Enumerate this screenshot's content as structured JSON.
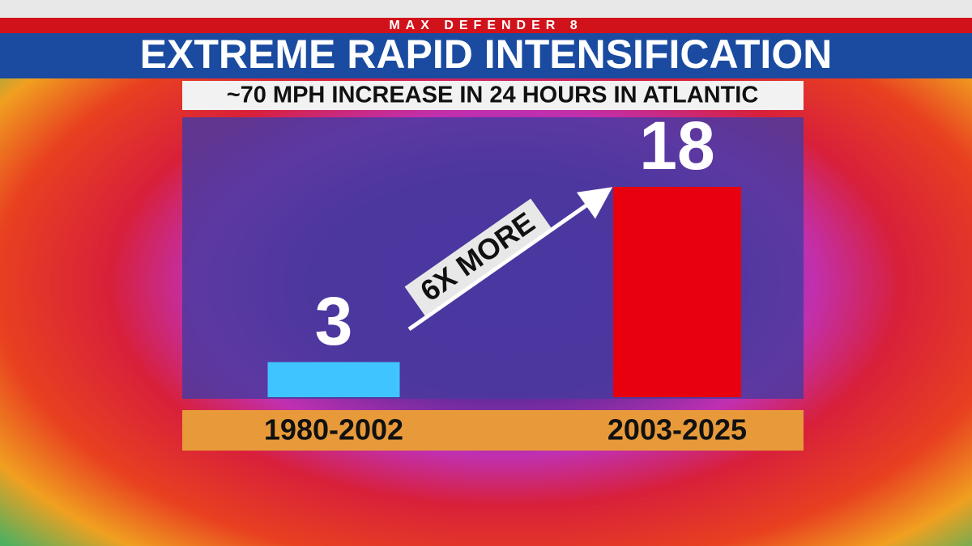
{
  "chart_data": {
    "type": "bar",
    "header": "MAX DEFENDER 8",
    "title": "EXTREME RAPID INTENSIFICATION",
    "subtitle": "~70 MPH INCREASE IN 24 HOURS IN ATLANTIC",
    "categories": [
      "1980-2002",
      "2003-2025"
    ],
    "values": [
      3,
      18
    ],
    "colors": [
      "#40c4ff",
      "#e8000e"
    ],
    "annotation": "6X MORE"
  }
}
